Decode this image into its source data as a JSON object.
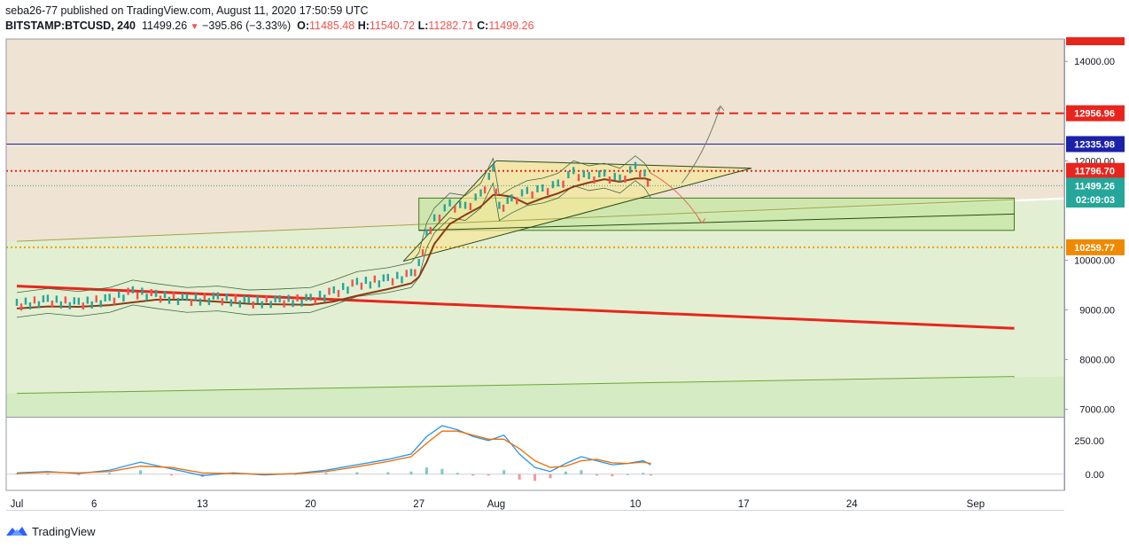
{
  "header": {
    "publisher_line": "seba26-77 published on TradingView.com, August 11, 2020 17:50:59 UTC",
    "symbol": "BITSTAMP:BTCUSD, 240",
    "last": "11499.26",
    "change": "−395.86 (−3.33%)",
    "o_label": "O:",
    "o": "11485.48",
    "h_label": "H:",
    "h": "11540.72",
    "l_label": "L:",
    "l": "11282.71",
    "c_label": "C:",
    "c": "11499.26"
  },
  "logo": {
    "text": "TradingView"
  },
  "colors": {
    "bg_upper": "#efe3d3",
    "bg_lower": "#e3efd2",
    "zone_green": "#c6e7a3",
    "red": "#e8251d",
    "blue": "#1b21a8",
    "olive": "#a4a34a",
    "candle_up": "#26a69a",
    "candle_down": "#ef5350",
    "macd": "#2196f3",
    "signal": "#ef6c00"
  },
  "chart_data": {
    "type": "line",
    "title": "BITSTAMP:BTCUSD, 240",
    "price_axis": {
      "ticks": [
        "14000.00",
        "12000.00",
        "10000.00",
        "9000.00",
        "8000.00",
        "7000.00"
      ],
      "tick_values": [
        14000,
        12000,
        10000,
        9000,
        8000,
        7000
      ],
      "range": [
        6850,
        14450
      ]
    },
    "price_labels": [
      {
        "text": "14000.00",
        "value": 14000
      },
      {
        "text": "12956.96",
        "value": 12956.96,
        "color": "#e8251d"
      },
      {
        "text": "12335.98",
        "value": 12335.98,
        "color": "#1b21a8"
      },
      {
        "text": "11796.70",
        "value": 11796.7,
        "color": "#e8251d"
      },
      {
        "text": "11499.26",
        "value": 11499.26,
        "color": "#26a69a"
      },
      {
        "text": "02:09:03",
        "value": 11220,
        "color": "#26a69a"
      },
      {
        "text": "10259.77",
        "value": 10259.77,
        "color": "#ef8a00"
      }
    ],
    "x_axis": {
      "labels": [
        "Jul",
        "6",
        "13",
        "20",
        "27",
        "Aug",
        "10",
        "17",
        "24",
        "Sep"
      ],
      "days": [
        1,
        6,
        13,
        20,
        27,
        32,
        41,
        48,
        55,
        63
      ]
    },
    "price_series": {
      "name": "BTCUSD close (approx.)",
      "days": [
        1,
        3,
        5,
        7,
        8.5,
        10,
        12,
        14,
        16,
        18,
        20,
        21.5,
        23,
        25,
        26.5,
        27,
        27.5,
        28,
        29,
        30,
        31,
        31.8,
        32.2,
        33,
        34,
        35,
        36,
        37,
        38,
        39,
        40,
        41,
        41.6,
        42
      ],
      "close": [
        9100,
        9180,
        9120,
        9200,
        9350,
        9280,
        9200,
        9230,
        9150,
        9170,
        9200,
        9350,
        9520,
        9600,
        9700,
        9900,
        10500,
        10800,
        11100,
        11050,
        11300,
        11800,
        11050,
        11200,
        11350,
        11400,
        11500,
        11750,
        11650,
        11700,
        11600,
        11850,
        11700,
        11499
      ]
    },
    "macd": {
      "ticks": [
        "250.00",
        "0.00"
      ],
      "tick_values": [
        250,
        0
      ],
      "range": [
        -120,
        420
      ],
      "days": [
        1,
        3,
        5,
        7,
        9,
        11,
        13,
        15,
        17,
        19,
        21,
        23,
        25,
        26.5,
        27.5,
        28.5,
        29.5,
        30.5,
        31.5,
        32.5,
        33.5,
        34.5,
        35.5,
        36.5,
        37.5,
        38.5,
        39.5,
        40.5,
        41.5,
        42
      ],
      "macd_line": [
        10,
        20,
        5,
        30,
        90,
        40,
        -10,
        10,
        -5,
        5,
        30,
        70,
        110,
        150,
        280,
        360,
        330,
        280,
        250,
        290,
        150,
        50,
        20,
        80,
        130,
        100,
        70,
        80,
        100,
        70
      ],
      "signal_line": [
        5,
        15,
        10,
        20,
        60,
        50,
        10,
        5,
        0,
        3,
        20,
        55,
        95,
        130,
        230,
        320,
        320,
        290,
        260,
        260,
        190,
        100,
        50,
        60,
        100,
        110,
        85,
        80,
        90,
        80
      ]
    },
    "drawn_levels": [
      {
        "name": "resistance-dashed",
        "value": 12956.96,
        "style": "dashed"
      },
      {
        "name": "blue-level",
        "value": 12335.98,
        "style": "solid"
      },
      {
        "name": "red-dotted",
        "value": 11796.7,
        "style": "dotted"
      },
      {
        "name": "last-price-dotted",
        "value": 11499.26,
        "style": "dotted"
      },
      {
        "name": "orange-dotted",
        "value": 10259.77,
        "style": "dotted"
      }
    ],
    "trendlines": [
      {
        "name": "red-downtrend",
        "start": {
          "day": 1,
          "value": 9480
        },
        "end": {
          "day": 65.5,
          "value": 8630
        }
      },
      {
        "name": "olive-uptrend",
        "start": {
          "day": 1,
          "value": 10380
        },
        "end": {
          "day": 65.5,
          "value": 11220
        }
      },
      {
        "name": "green-uptrend-lower",
        "start": {
          "day": 1,
          "value": 7320
        },
        "end": {
          "day": 65.5,
          "value": 7660
        }
      },
      {
        "name": "channel-lower",
        "start": {
          "day": 27,
          "value": 10600
        },
        "end": {
          "day": 65.5,
          "value": 10930
        }
      },
      {
        "name": "triangle-lower",
        "start": {
          "day": 26,
          "value": 9980
        },
        "end": {
          "day": 48.5,
          "value": 11850
        }
      },
      {
        "name": "triangle-upper",
        "start": {
          "day": 32,
          "value": 12000
        },
        "end": {
          "day": 48.5,
          "value": 11850
        }
      },
      {
        "name": "triangle-left",
        "start": {
          "day": 26,
          "value": 9980
        },
        "end": {
          "day": 32,
          "value": 12000
        }
      }
    ],
    "zones": [
      {
        "name": "green-box",
        "from_day": 27,
        "to_day": 65.5,
        "top": 11250,
        "bottom": 10600
      }
    ],
    "projections": [
      {
        "name": "breakout-up",
        "points": [
          {
            "day": 44,
            "value": 11550
          },
          {
            "day": 45.5,
            "value": 12150
          },
          {
            "day": 46.5,
            "value": 13100
          }
        ]
      },
      {
        "name": "breakdown",
        "points": [
          {
            "day": 42,
            "value": 11750
          },
          {
            "day": 44,
            "value": 11400
          },
          {
            "day": 45.3,
            "value": 10750
          }
        ]
      }
    ]
  }
}
